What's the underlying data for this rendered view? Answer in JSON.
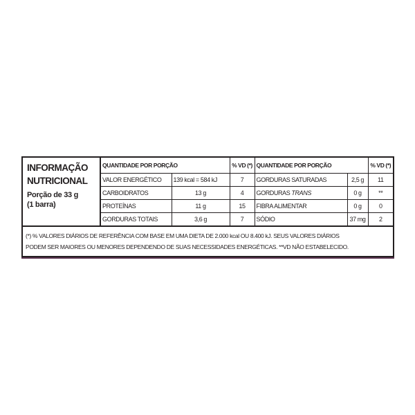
{
  "title_line1": "INFORMAÇÃO",
  "title_line2": "NUTRICIONAL",
  "portion_line1": "Porção de 33 g",
  "portion_line2": "(1 barra)",
  "header": {
    "qty": "QUANTIDADE POR PORÇÃO",
    "vd": "% VD (*)"
  },
  "left_rows": [
    {
      "name": "VALOR ENERGÉTICO",
      "qty": "139 kcal = 584 kJ",
      "vd": "7"
    },
    {
      "name": "CARBOIDRATOS",
      "qty": "13 g",
      "vd": "4"
    },
    {
      "name": "PROTEÍNAS",
      "qty": "11 g",
      "vd": "15"
    },
    {
      "name": "GORDURAS TOTAIS",
      "qty": "3,6 g",
      "vd": "7"
    }
  ],
  "right_rows": [
    {
      "name": "GORDURAS SATURADAS",
      "qty": "2,5 g",
      "vd": "11"
    },
    {
      "name": "GORDURAS",
      "name_italic": "TRANS",
      "qty": "0 g",
      "vd": "**"
    },
    {
      "name": "FIBRA ALIMENTAR",
      "qty": "0 g",
      "vd": "0"
    },
    {
      "name": "SÓDIO",
      "qty": "37 mg",
      "vd": "2"
    }
  ],
  "footnote_line1": "(*) % VALORES DIÁRIOS DE REFERÊNCIA COM BASE EM UMA DIETA DE 2.000 kcal OU 8.400 kJ. SEUS VALORES DIÁRIOS",
  "footnote_line2": "PODEM SER MAIORES OU MENORES DEPENDENDO DE SUAS NECESSIDADES ENERGÉTICAS.  **VD NÃO ESTABELECIDO."
}
